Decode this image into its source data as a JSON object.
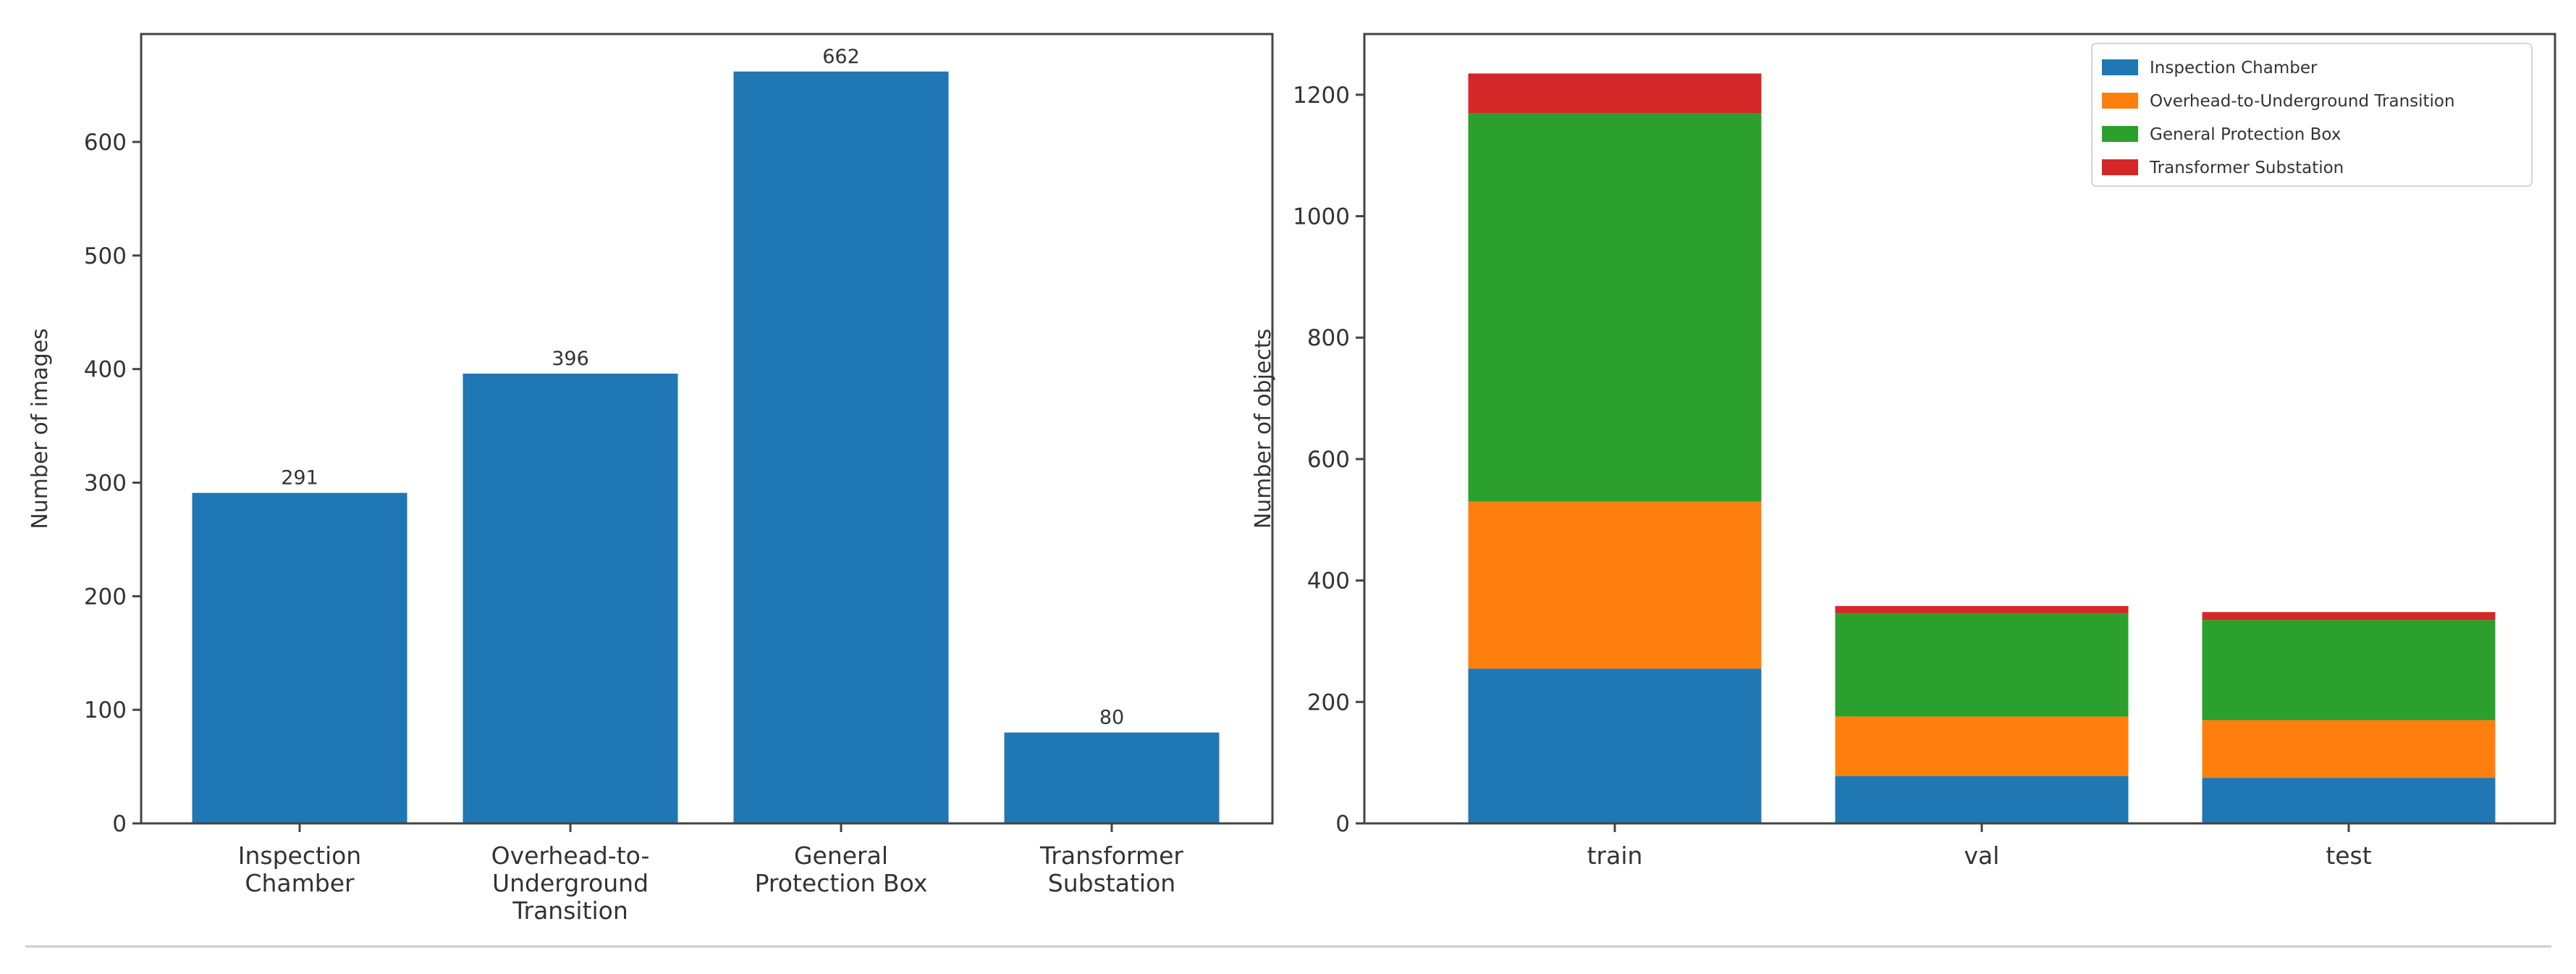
{
  "chart_data": [
    {
      "type": "bar",
      "categories": [
        "Inspection\nChamber",
        "Overhead-to-\nUnderground\nTransition",
        "General\nProtection Box",
        "Transformer\nSubstation"
      ],
      "values": [
        291,
        396,
        662,
        80
      ],
      "data_labels": [
        "291",
        "396",
        "662",
        "80"
      ],
      "ylabel": "Number of images",
      "ylim": [
        0,
        695
      ],
      "yticks": [
        0,
        100,
        200,
        300,
        400,
        500,
        600
      ],
      "color": "#1f77b4",
      "grid": false
    },
    {
      "type": "bar",
      "stacked": true,
      "categories": [
        "train",
        "val",
        "test"
      ],
      "series": [
        {
          "name": "Inspection Chamber",
          "color": "#1f77b4",
          "values": [
            255,
            78,
            75
          ]
        },
        {
          "name": "Overhead-to-Underground Transition",
          "color": "#ff7f0e",
          "values": [
            275,
            98,
            95
          ]
        },
        {
          "name": "General Protection Box",
          "color": "#2ca02c",
          "values": [
            640,
            170,
            165
          ]
        },
        {
          "name": "Transformer Substation",
          "color": "#d62728",
          "values": [
            65,
            12,
            13
          ]
        }
      ],
      "ylabel": "Number of objects",
      "ylim": [
        0,
        1300
      ],
      "yticks": [
        0,
        200,
        400,
        600,
        800,
        1000,
        1200
      ],
      "legend": "top-right",
      "grid": false
    }
  ]
}
